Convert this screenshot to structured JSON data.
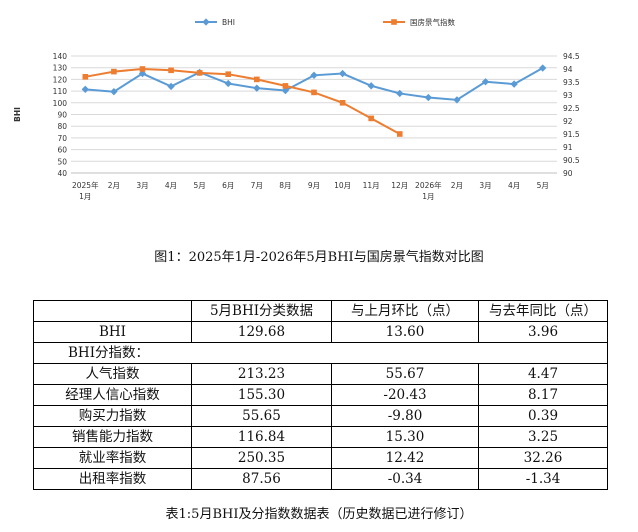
{
  "chart_data": {
    "type": "line",
    "categories": [
      "2025年\n1月",
      "2月",
      "3月",
      "4月",
      "5月",
      "6月",
      "7月",
      "8月",
      "9月",
      "10月",
      "11月",
      "12月",
      "2026年\n1月",
      "2月",
      "3月",
      "4月",
      "5月"
    ],
    "series": [
      {
        "name": "BHI",
        "axis": "left",
        "color": "#5b9bd5",
        "marker": "diamond",
        "values": [
          111.5,
          109.5,
          125,
          114,
          126,
          116.5,
          112.5,
          110.5,
          123.5,
          125,
          114.5,
          108,
          104.5,
          102.5,
          118,
          116,
          129.7
        ]
      },
      {
        "name": "国房景气指数",
        "axis": "right",
        "color": "#ed7d31",
        "marker": "square",
        "values": [
          93.7,
          93.9,
          94.0,
          93.95,
          93.85,
          93.8,
          93.6,
          93.35,
          93.1,
          92.7,
          92.1,
          91.5,
          null,
          null,
          null,
          null,
          null
        ]
      }
    ],
    "y_left": {
      "min": 40,
      "max": 140,
      "ticks": [
        40,
        50,
        60,
        70,
        80,
        90,
        100,
        110,
        120,
        130,
        140
      ]
    },
    "y_right": {
      "min": 90,
      "max": 94.5,
      "ticks": [
        90,
        90.5,
        91,
        91.5,
        92,
        92.5,
        93,
        93.5,
        94,
        94.5
      ]
    },
    "ylabel_left": "BHI",
    "grid": true,
    "legend": "top"
  },
  "figure_caption": "图1：2025年1月-2026年5月BHI与国房景气指数对比图",
  "table": {
    "headers": [
      "",
      "5月BHI分类数据",
      "与上月环比（点）",
      "与去年同比（点）"
    ],
    "bhi_row": [
      "BHI",
      "129.68",
      "13.60",
      "3.96"
    ],
    "subheading": "BHI分指数：",
    "rows": [
      [
        "人气指数",
        "213.23",
        "55.67",
        "4.47"
      ],
      [
        "经理人信心指数",
        "155.30",
        "-20.43",
        "8.17"
      ],
      [
        "购买力指数",
        "55.65",
        "-9.80",
        "0.39"
      ],
      [
        "销售能力指数",
        "116.84",
        "15.30",
        "3.25"
      ],
      [
        "就业率指数",
        "250.35",
        "12.42",
        "32.26"
      ],
      [
        "出租率指数",
        "87.56",
        "-0.34",
        "-1.34"
      ]
    ]
  },
  "table_caption": "表1:5月BHI及分指数数据表（历史数据已进行修订）"
}
